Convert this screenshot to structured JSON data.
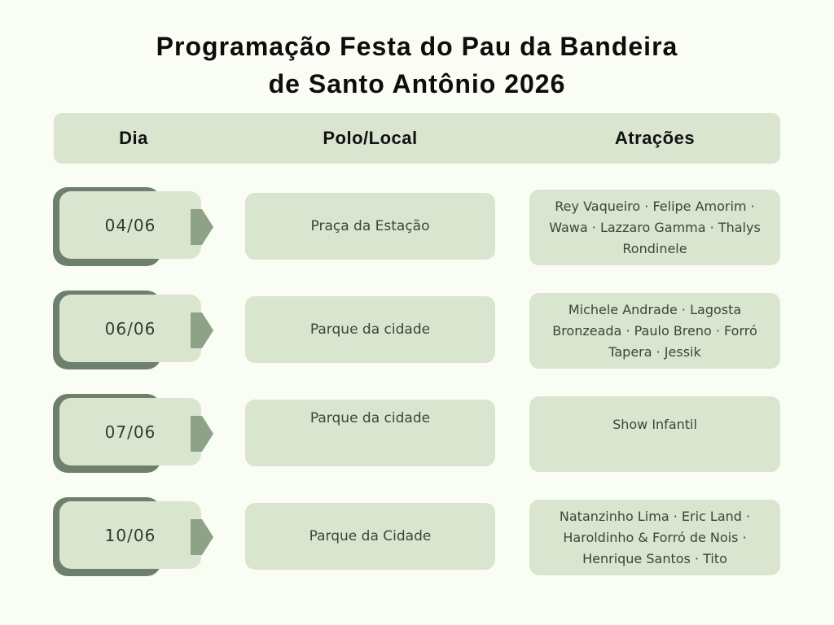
{
  "title": {
    "line1": "Programação Festa do Pau da Bandeira",
    "line2": "de Santo Antônio 2026"
  },
  "table": {
    "headers": [
      "Dia",
      "Polo/Local",
      "Atrações"
    ],
    "rows": [
      {
        "day": "04/06",
        "local": "Praça da Estação",
        "atracoes": "Rey Vaqueiro · Felipe Amorim · Wawa · Lazzaro Gamma · Thalys Rondinele"
      },
      {
        "day": "06/06",
        "local": "Parque da cidade",
        "atracoes": "Michele Andrade · Lagosta Bronzeada · Paulo Breno · Forró Tapera · Jessik"
      },
      {
        "day": "07/06",
        "local": "Parque da cidade",
        "atracoes": "Show Infantil"
      },
      {
        "day": "10/06",
        "local": "Parque da Cidade",
        "atracoes": "Natanzinho Lima · Eric Land · Haroldinho & Forró de Nois · Henrique Santos · Tito"
      }
    ]
  },
  "colors": {
    "background": "#fafdf4",
    "card": "#d9e5ce",
    "accent_dark": "#6e7f6e",
    "arrow": "#8da287",
    "text": "#3e4438",
    "heading": "#0d0d0d"
  }
}
